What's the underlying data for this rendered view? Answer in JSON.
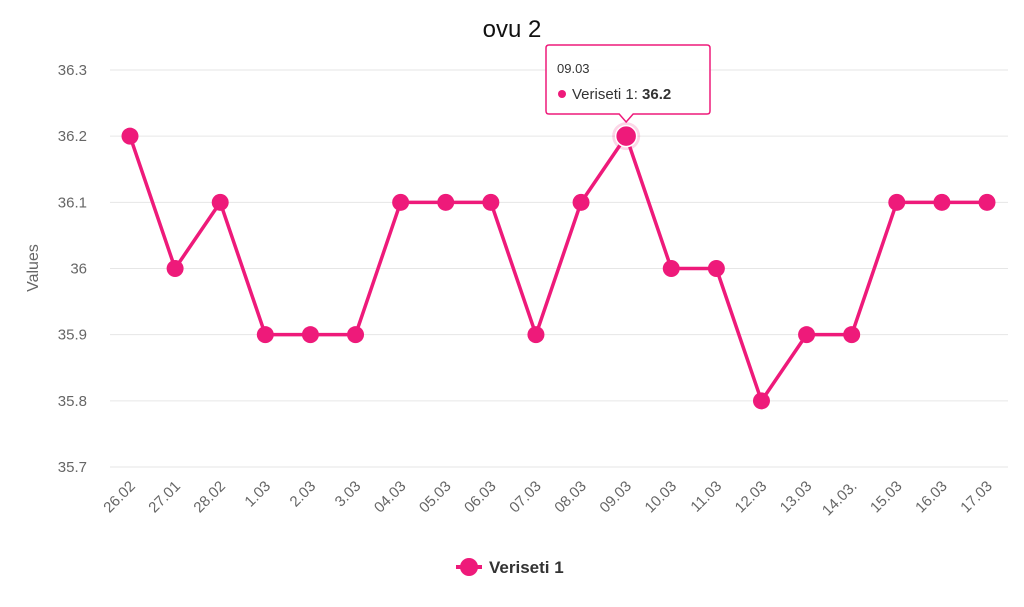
{
  "chart_data": {
    "type": "line",
    "title": "ovu 2",
    "xlabel": "",
    "ylabel": "Values",
    "ylim": [
      35.7,
      36.3
    ],
    "yticks": [
      "36.3",
      "36.2",
      "36.1",
      "36",
      "35.9",
      "35.8",
      "35.7"
    ],
    "grid": true,
    "legend_position": "bottom-center",
    "categories": [
      "26.02",
      "27.01",
      "28.02",
      "1.03",
      "2.03",
      "3.03",
      "04.03",
      "05.03",
      "06.03",
      "07.03",
      "08.03",
      "09.03",
      "10.03",
      "11.03",
      "12.03",
      "13.03",
      "14.03.",
      "15.03",
      "16.03",
      "17.03"
    ],
    "series": [
      {
        "name": "Veriseti 1",
        "color": "#ee1a7a",
        "values": [
          36.2,
          36.0,
          36.1,
          35.9,
          35.9,
          35.9,
          36.1,
          36.1,
          36.1,
          35.9,
          36.1,
          36.2,
          36.0,
          36.0,
          35.8,
          35.9,
          35.9,
          36.1,
          36.1,
          36.1
        ]
      }
    ],
    "tooltip": {
      "category": "09.03",
      "series_label": "Veriseti 1: ",
      "value": "36.2"
    }
  }
}
